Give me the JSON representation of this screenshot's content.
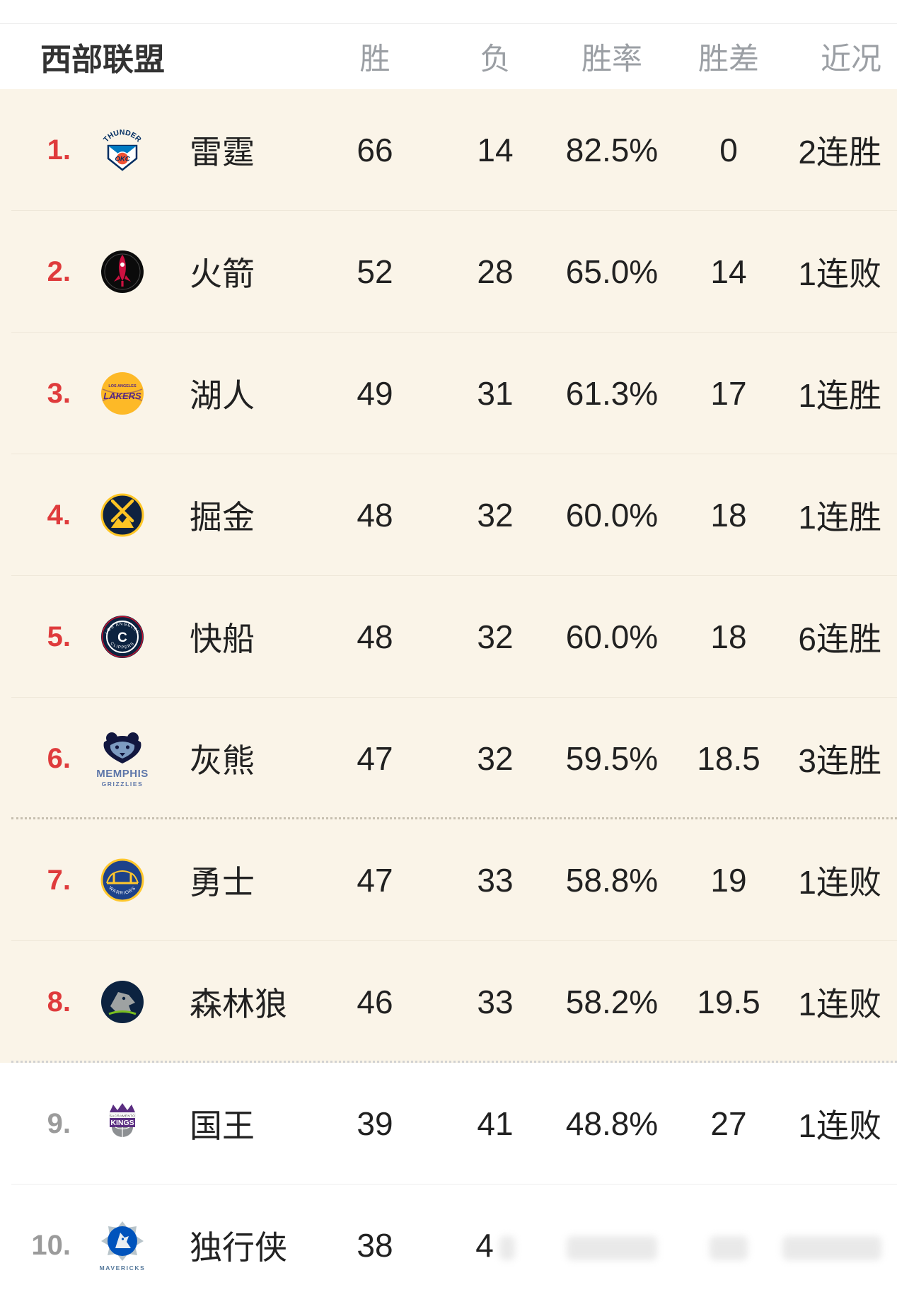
{
  "page": {
    "bg_cream": "#faf4e8",
    "bg_white": "#ffffff",
    "rank_red": "#df3b3c",
    "rank_gray": "#9b9b9b",
    "text_dark": "#212121",
    "header_gray": "#9b9fa4"
  },
  "header": {
    "conference": "西部联盟",
    "cols": {
      "wins": "胜",
      "losses": "负",
      "pct": "胜率",
      "gb": "胜差",
      "recent": "近况"
    }
  },
  "standings": [
    {
      "rank": "1.",
      "rank_style": "red",
      "team": "雷霆",
      "wins": "66",
      "losses": "14",
      "pct": "82.5%",
      "gb": "0",
      "recent": "2连胜",
      "zone": "cream",
      "divider": "solid",
      "logo": {
        "kind": "okc",
        "title": "THUNDER",
        "sub": "OKC",
        "colors": [
          "#002d62",
          "#007ac1",
          "#f05133"
        ]
      }
    },
    {
      "rank": "2.",
      "rank_style": "red",
      "team": "火箭",
      "wins": "52",
      "losses": "28",
      "pct": "65.0%",
      "gb": "14",
      "recent": "1连败",
      "zone": "cream",
      "divider": "solid",
      "logo": {
        "kind": "rockets",
        "colors": [
          "#0b0b0b",
          "#ce1141"
        ]
      }
    },
    {
      "rank": "3.",
      "rank_style": "red",
      "team": "湖人",
      "wins": "49",
      "losses": "31",
      "pct": "61.3%",
      "gb": "17",
      "recent": "1连胜",
      "zone": "cream",
      "divider": "solid",
      "logo": {
        "kind": "lakers",
        "title": "LAKERS",
        "sub": "LOS ANGELES",
        "colors": [
          "#fdb927",
          "#552583"
        ]
      }
    },
    {
      "rank": "4.",
      "rank_style": "red",
      "team": "掘金",
      "wins": "48",
      "losses": "32",
      "pct": "60.0%",
      "gb": "18",
      "recent": "1连胜",
      "zone": "cream",
      "divider": "solid",
      "logo": {
        "kind": "nuggets",
        "colors": [
          "#0e2240",
          "#fec524"
        ]
      }
    },
    {
      "rank": "5.",
      "rank_style": "red",
      "team": "快船",
      "wins": "48",
      "losses": "32",
      "pct": "60.0%",
      "gb": "18",
      "recent": "6连胜",
      "zone": "cream",
      "divider": "solid",
      "logo": {
        "kind": "clippers",
        "title": "LOS ANGELES",
        "sub": "CLIPPERS",
        "colors": [
          "#0c2340",
          "#c8102e"
        ]
      }
    },
    {
      "rank": "6.",
      "rank_style": "red",
      "team": "灰熊",
      "wins": "47",
      "losses": "32",
      "pct": "59.5%",
      "gb": "18.5",
      "recent": "3连胜",
      "zone": "cream",
      "divider": "dotted",
      "logo": {
        "kind": "grizzlies",
        "caption1": "MEMPHIS",
        "caption2": "GRIZZLIES",
        "caption_color": "#5d76a9",
        "colors": [
          "#12173f",
          "#7d9bc1"
        ]
      }
    },
    {
      "rank": "7.",
      "rank_style": "red",
      "team": "勇士",
      "wins": "47",
      "losses": "33",
      "pct": "58.8%",
      "gb": "19",
      "recent": "1连败",
      "zone": "cream",
      "divider": "solid",
      "logo": {
        "kind": "warriors",
        "title": "WARRIORS",
        "colors": [
          "#1d428a",
          "#ffc72c"
        ]
      }
    },
    {
      "rank": "8.",
      "rank_style": "red",
      "team": "森林狼",
      "wins": "46",
      "losses": "33",
      "pct": "58.2%",
      "gb": "19.5",
      "recent": "1连败",
      "zone": "cream",
      "divider": "dotted-light",
      "logo": {
        "kind": "wolves",
        "colors": [
          "#0c2340",
          "#9ea2a2",
          "#78be20"
        ]
      }
    },
    {
      "rank": "9.",
      "rank_style": "gray",
      "team": "国王",
      "wins": "39",
      "losses": "41",
      "pct": "48.8%",
      "gb": "27",
      "recent": "1连败",
      "zone": "white",
      "divider": "solid",
      "logo": {
        "kind": "kings",
        "title": "SACRAMENTO",
        "sub": "KINGS",
        "colors": [
          "#5a2d81",
          "#8d9093"
        ]
      }
    },
    {
      "rank": "10.",
      "rank_style": "gray",
      "team": "独行侠",
      "wins": "38",
      "losses": "4",
      "pct": "",
      "gb": "",
      "recent": "",
      "zone": "white",
      "divider": "none",
      "ghosts": {
        "losses": 22,
        "pct": 128,
        "gb": 54,
        "recent": 140
      },
      "logo": {
        "kind": "mavs",
        "caption2": "MAVERICKS",
        "caption_color": "#56799b",
        "colors": [
          "#0053bc",
          "#b8c4ca",
          "#e9eef2"
        ]
      }
    }
  ]
}
